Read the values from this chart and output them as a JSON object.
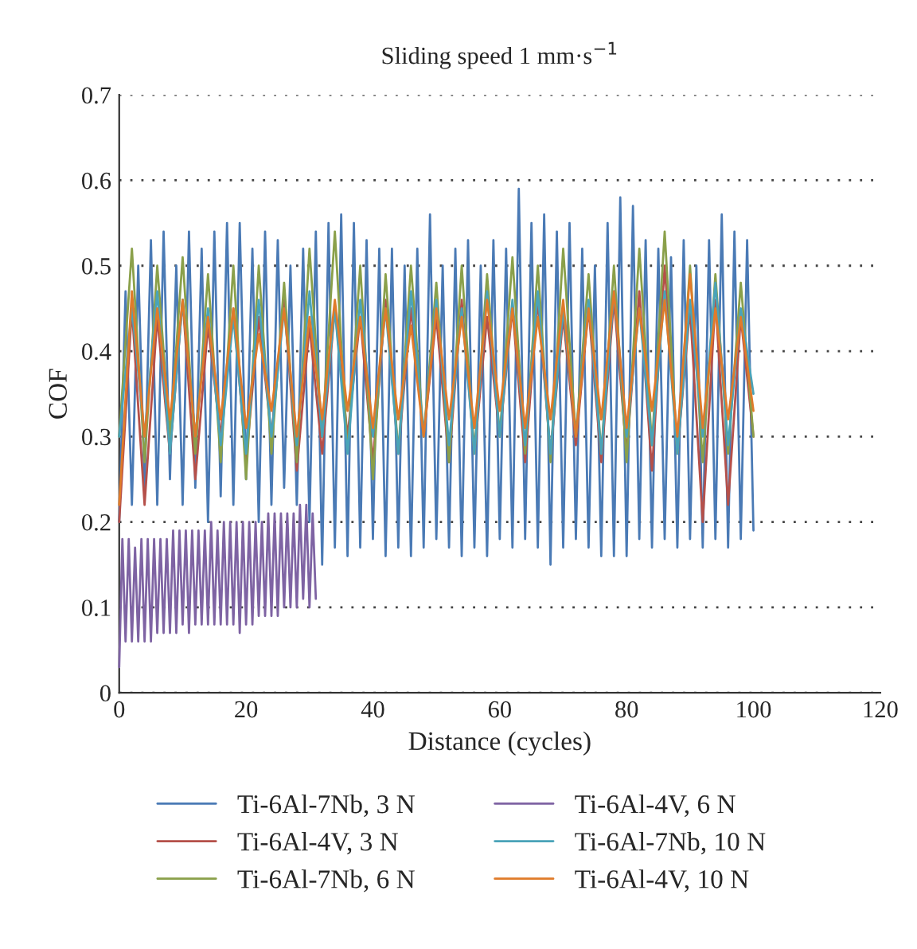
{
  "chart_data": {
    "type": "line",
    "title": "Sliding speed 1 mm·s$^{−1}$",
    "xlabel": "Distance (cycles)",
    "ylabel": "COF",
    "xlim": [
      0,
      120
    ],
    "xticks": [
      0,
      20,
      40,
      60,
      80,
      100,
      120
    ],
    "ylim": [
      0,
      0.7
    ],
    "yticks": [
      0,
      0.1,
      0.2,
      0.3,
      0.4,
      0.5,
      0.6,
      0.7
    ],
    "grid": "y",
    "legend": "bottom",
    "marker": "none",
    "line_style": "solid",
    "x": [
      0,
      2,
      4,
      6,
      8,
      10,
      12,
      14,
      16,
      18,
      20,
      22,
      24,
      26,
      28,
      30,
      32,
      34,
      36,
      38,
      40,
      42,
      44,
      46,
      48,
      50,
      52,
      54,
      56,
      58,
      60,
      62,
      64,
      66,
      68,
      70,
      72,
      74,
      76,
      78,
      80,
      82,
      84,
      86,
      88,
      90,
      92,
      94,
      96,
      98,
      100
    ],
    "series": [
      {
        "name": "Ti-6Al-7Nb, 3 N",
        "color": "#4a7ab5",
        "x": [
          0,
          1,
          2,
          3,
          4,
          5,
          6,
          7,
          8,
          9,
          10,
          11,
          12,
          13,
          14,
          15,
          16,
          17,
          18,
          19,
          20,
          21,
          22,
          23,
          24,
          25,
          26,
          27,
          28,
          29,
          30,
          31,
          32,
          33,
          34,
          35,
          36,
          37,
          38,
          39,
          40,
          41,
          42,
          43,
          44,
          45,
          46,
          47,
          48,
          49,
          50,
          51,
          52,
          53,
          54,
          55,
          56,
          57,
          58,
          59,
          60,
          61,
          62,
          63,
          64,
          65,
          66,
          67,
          68,
          69,
          70,
          71,
          72,
          73,
          74,
          75,
          76,
          77,
          78,
          79,
          80,
          81,
          82,
          83,
          84,
          85,
          86,
          87,
          88,
          89,
          90,
          91,
          92,
          93,
          94,
          95,
          96,
          97,
          98,
          99,
          100
        ],
        "values": [
          0.2,
          0.47,
          0.22,
          0.5,
          0.24,
          0.53,
          0.22,
          0.54,
          0.25,
          0.5,
          0.22,
          0.54,
          0.24,
          0.52,
          0.2,
          0.54,
          0.23,
          0.55,
          0.22,
          0.55,
          0.25,
          0.52,
          0.2,
          0.54,
          0.22,
          0.53,
          0.24,
          0.5,
          0.22,
          0.52,
          0.2,
          0.54,
          0.15,
          0.55,
          0.17,
          0.56,
          0.16,
          0.55,
          0.17,
          0.53,
          0.18,
          0.52,
          0.16,
          0.52,
          0.17,
          0.5,
          0.16,
          0.52,
          0.17,
          0.56,
          0.18,
          0.5,
          0.17,
          0.52,
          0.16,
          0.53,
          0.17,
          0.5,
          0.16,
          0.53,
          0.18,
          0.52,
          0.17,
          0.59,
          0.18,
          0.55,
          0.17,
          0.56,
          0.15,
          0.54,
          0.17,
          0.55,
          0.18,
          0.52,
          0.17,
          0.5,
          0.16,
          0.55,
          0.16,
          0.58,
          0.16,
          0.57,
          0.18,
          0.53,
          0.17,
          0.52,
          0.18,
          0.51,
          0.17,
          0.53,
          0.18,
          0.5,
          0.17,
          0.53,
          0.18,
          0.56,
          0.17,
          0.54,
          0.18,
          0.53,
          0.19
        ]
      },
      {
        "name": "Ti-6Al-4V, 3 N",
        "color": "#b5504a",
        "values": [
          0.2,
          0.45,
          0.22,
          0.44,
          0.28,
          0.46,
          0.25,
          0.43,
          0.3,
          0.45,
          0.27,
          0.44,
          0.3,
          0.46,
          0.26,
          0.43,
          0.28,
          0.45,
          0.3,
          0.44,
          0.27,
          0.46,
          0.28,
          0.45,
          0.3,
          0.44,
          0.27,
          0.46,
          0.28,
          0.44,
          0.3,
          0.45,
          0.27,
          0.46,
          0.28,
          0.44,
          0.29,
          0.45,
          0.27,
          0.46,
          0.28,
          0.47,
          0.26,
          0.5,
          0.28,
          0.45,
          0.2,
          0.46,
          0.22,
          0.44,
          0.3
        ]
      },
      {
        "name": "Ti-6Al-7Nb, 6 N",
        "color": "#8aa04a",
        "values": [
          0.3,
          0.52,
          0.27,
          0.5,
          0.3,
          0.51,
          0.28,
          0.49,
          0.27,
          0.5,
          0.25,
          0.5,
          0.28,
          0.48,
          0.27,
          0.52,
          0.3,
          0.54,
          0.28,
          0.5,
          0.25,
          0.49,
          0.28,
          0.5,
          0.3,
          0.48,
          0.27,
          0.5,
          0.28,
          0.49,
          0.3,
          0.51,
          0.28,
          0.5,
          0.27,
          0.52,
          0.3,
          0.49,
          0.28,
          0.5,
          0.27,
          0.52,
          0.29,
          0.54,
          0.28,
          0.5,
          0.27,
          0.49,
          0.28,
          0.48,
          0.3
        ]
      },
      {
        "name": "Ti-6Al-4V, 6 N",
        "color": "#7e63a3",
        "x": [
          0,
          0.5,
          1,
          1.5,
          2,
          2.5,
          3,
          3.5,
          4,
          4.5,
          5,
          5.5,
          6,
          6.5,
          7,
          7.5,
          8,
          8.5,
          9,
          9.5,
          10,
          10.5,
          11,
          11.5,
          12,
          12.5,
          13,
          13.5,
          14,
          14.5,
          15,
          15.5,
          16,
          16.5,
          17,
          17.5,
          18,
          18.5,
          19,
          19.5,
          20,
          20.5,
          21,
          21.5,
          22,
          22.5,
          23,
          23.5,
          24,
          24.5,
          25,
          25.5,
          26,
          26.5,
          27,
          27.5,
          28,
          28.5,
          29,
          29.5,
          30,
          30.5,
          31
        ],
        "values": [
          0.03,
          0.18,
          0.06,
          0.18,
          0.06,
          0.17,
          0.06,
          0.18,
          0.06,
          0.18,
          0.06,
          0.18,
          0.07,
          0.18,
          0.07,
          0.18,
          0.07,
          0.19,
          0.07,
          0.19,
          0.08,
          0.19,
          0.07,
          0.19,
          0.08,
          0.19,
          0.08,
          0.19,
          0.08,
          0.2,
          0.08,
          0.19,
          0.08,
          0.2,
          0.08,
          0.2,
          0.08,
          0.2,
          0.07,
          0.2,
          0.08,
          0.2,
          0.08,
          0.2,
          0.09,
          0.2,
          0.09,
          0.21,
          0.09,
          0.21,
          0.09,
          0.21,
          0.1,
          0.21,
          0.1,
          0.21,
          0.1,
          0.22,
          0.11,
          0.22,
          0.1,
          0.21,
          0.11
        ]
      },
      {
        "name": "Ti-6Al-7Nb, 10 N",
        "color": "#4aa3b8",
        "values": [
          0.3,
          0.45,
          0.3,
          0.47,
          0.28,
          0.46,
          0.3,
          0.45,
          0.29,
          0.44,
          0.28,
          0.46,
          0.3,
          0.45,
          0.29,
          0.47,
          0.3,
          0.45,
          0.28,
          0.46,
          0.3,
          0.45,
          0.28,
          0.47,
          0.3,
          0.46,
          0.29,
          0.45,
          0.28,
          0.47,
          0.3,
          0.46,
          0.29,
          0.47,
          0.28,
          0.45,
          0.3,
          0.46,
          0.28,
          0.47,
          0.3,
          0.45,
          0.29,
          0.47,
          0.28,
          0.46,
          0.3,
          0.48,
          0.29,
          0.45,
          0.35
        ]
      },
      {
        "name": "Ti-6Al-4V, 10 N",
        "color": "#e07b2a",
        "values": [
          0.22,
          0.47,
          0.3,
          0.45,
          0.32,
          0.46,
          0.3,
          0.44,
          0.32,
          0.45,
          0.31,
          0.42,
          0.33,
          0.45,
          0.3,
          0.44,
          0.32,
          0.46,
          0.33,
          0.44,
          0.31,
          0.45,
          0.32,
          0.43,
          0.3,
          0.45,
          0.32,
          0.44,
          0.31,
          0.46,
          0.33,
          0.45,
          0.31,
          0.44,
          0.32,
          0.46,
          0.3,
          0.45,
          0.32,
          0.47,
          0.31,
          0.45,
          0.33,
          0.46,
          0.3,
          0.49,
          0.31,
          0.45,
          0.32,
          0.44,
          0.33
        ]
      }
    ]
  }
}
